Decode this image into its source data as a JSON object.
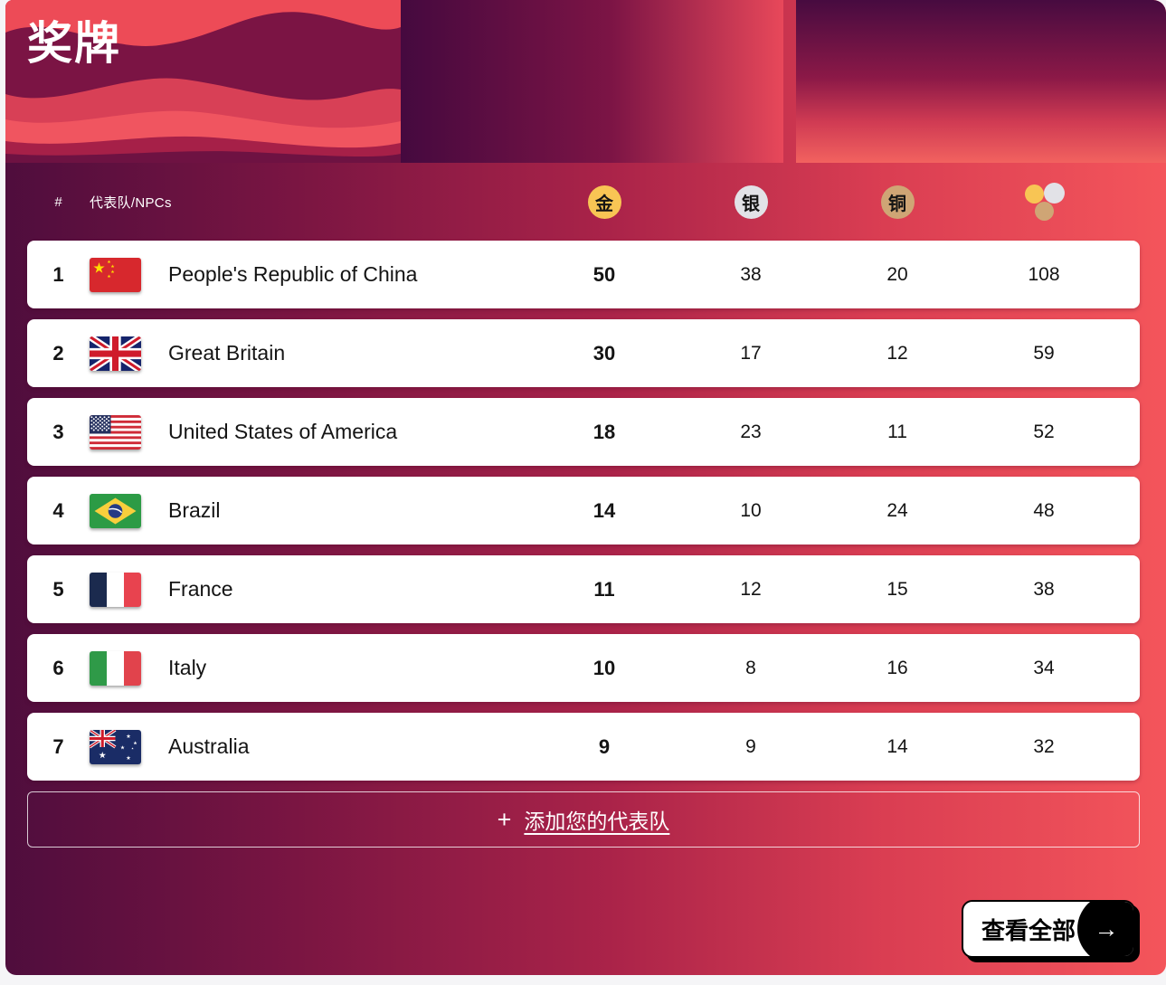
{
  "theme": {
    "gold": "#f8c554",
    "silver": "#e2e2e7",
    "bronze": "#cfa575",
    "row_bg": "#ffffff",
    "header_red": "#ed4b57",
    "dark_purple": "#4f0d3d"
  },
  "header": {
    "title": "奖牌"
  },
  "table": {
    "rank_header": "#",
    "team_header": "代表队/NPCs",
    "medals": {
      "gold_label": "金",
      "silver_label": "银",
      "bronze_label": "铜"
    },
    "rows": [
      {
        "rank": "1",
        "flag": "cn",
        "team": "People's Republic of China",
        "gold": "50",
        "silver": "38",
        "bronze": "20",
        "total": "108"
      },
      {
        "rank": "2",
        "flag": "gb",
        "team": "Great Britain",
        "gold": "30",
        "silver": "17",
        "bronze": "12",
        "total": "59"
      },
      {
        "rank": "3",
        "flag": "us",
        "team": "United States of America",
        "gold": "18",
        "silver": "23",
        "bronze": "11",
        "total": "52"
      },
      {
        "rank": "4",
        "flag": "br",
        "team": "Brazil",
        "gold": "14",
        "silver": "10",
        "bronze": "24",
        "total": "48"
      },
      {
        "rank": "5",
        "flag": "fr",
        "team": "France",
        "gold": "11",
        "silver": "12",
        "bronze": "15",
        "total": "38"
      },
      {
        "rank": "6",
        "flag": "it",
        "team": "Italy",
        "gold": "10",
        "silver": "8",
        "bronze": "16",
        "total": "34"
      },
      {
        "rank": "7",
        "flag": "au",
        "team": "Australia",
        "gold": "9",
        "silver": "9",
        "bronze": "14",
        "total": "32"
      }
    ]
  },
  "actions": {
    "plus": "+",
    "add_team_label": "添加您的代表队",
    "view_all_label": "查看全部",
    "arrow": "→"
  }
}
